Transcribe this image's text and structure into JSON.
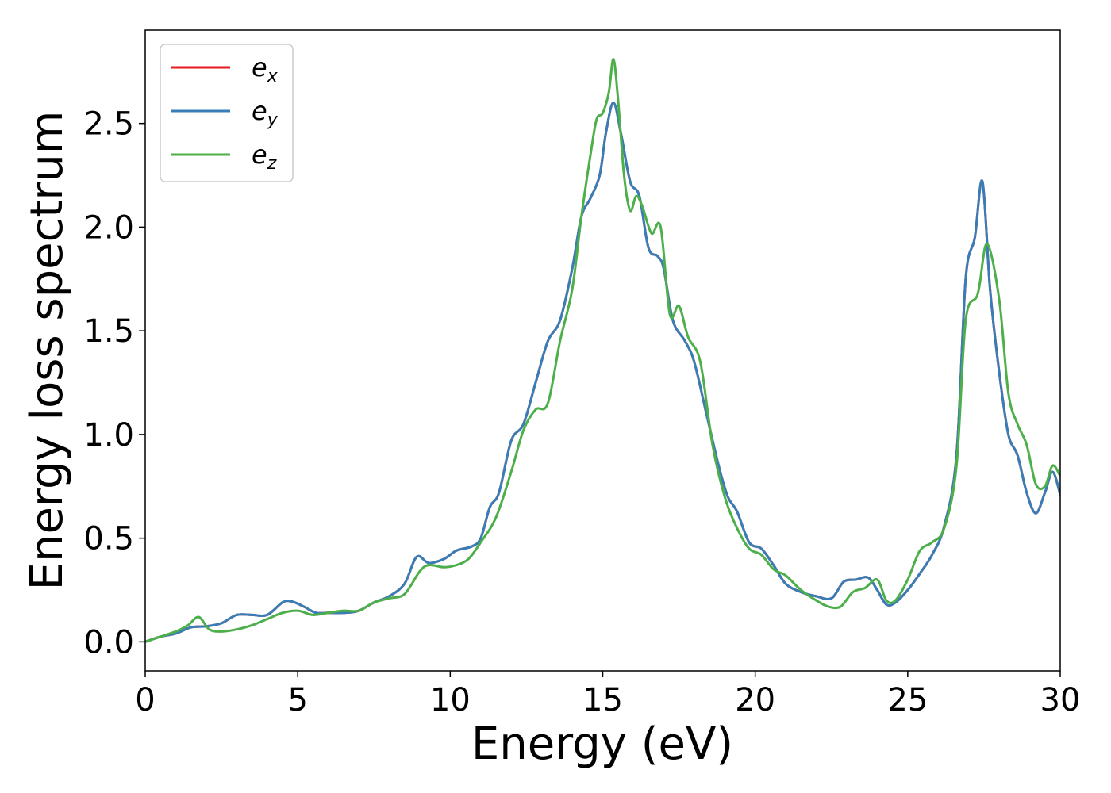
{
  "chart_data": {
    "type": "line",
    "xlabel": "Energy (eV)",
    "ylabel": "Energy loss spectrum",
    "xlim": [
      0,
      30
    ],
    "ylim": [
      -0.14,
      2.95
    ],
    "xticks": [
      0,
      5,
      10,
      15,
      20,
      25,
      30
    ],
    "xtick_labels": [
      "0",
      "5",
      "10",
      "15",
      "20",
      "25",
      "30"
    ],
    "yticks": [
      0.0,
      0.5,
      1.0,
      1.5,
      2.0,
      2.5
    ],
    "ytick_labels": [
      "0.0",
      "0.5",
      "1.0",
      "1.5",
      "2.0",
      "2.5"
    ],
    "grid": false,
    "legend_position": "top-left",
    "series": [
      {
        "name": "e_x",
        "label_main": "e",
        "label_sub": "x",
        "color": "#e41a1c",
        "x": [
          0,
          0.5,
          1,
          1.5,
          2,
          2.5,
          3,
          3.5,
          4,
          4.5,
          4.8,
          5.2,
          5.6,
          6,
          6.5,
          7,
          7.5,
          8,
          8.5,
          8.9,
          9.3,
          9.8,
          10.2,
          10.7,
          11,
          11.3,
          11.6,
          12,
          12.4,
          12.8,
          13.2,
          13.6,
          14,
          14.3,
          14.6,
          14.9,
          15.1,
          15.35,
          15.6,
          15.9,
          16.2,
          16.5,
          16.8,
          17,
          17.3,
          17.7,
          18,
          18.4,
          18.8,
          19.1,
          19.4,
          19.8,
          20.2,
          20.6,
          21,
          21.5,
          22,
          22.5,
          22.9,
          23.3,
          23.7,
          24,
          24.3,
          24.6,
          25,
          25.4,
          25.8,
          26.2,
          26.6,
          26.9,
          27.2,
          27.45,
          27.7,
          28,
          28.3,
          28.6,
          28.9,
          29.2,
          29.5,
          29.75,
          30
        ],
        "values": [
          0,
          0.025,
          0.04,
          0.07,
          0.075,
          0.09,
          0.13,
          0.13,
          0.13,
          0.19,
          0.195,
          0.17,
          0.14,
          0.14,
          0.14,
          0.15,
          0.19,
          0.22,
          0.28,
          0.41,
          0.38,
          0.4,
          0.44,
          0.46,
          0.5,
          0.65,
          0.72,
          0.97,
          1.05,
          1.25,
          1.45,
          1.55,
          1.8,
          2.05,
          2.14,
          2.25,
          2.45,
          2.6,
          2.45,
          2.22,
          2.15,
          1.9,
          1.86,
          1.8,
          1.55,
          1.45,
          1.35,
          1.1,
          0.85,
          0.7,
          0.63,
          0.48,
          0.45,
          0.37,
          0.28,
          0.24,
          0.22,
          0.21,
          0.29,
          0.3,
          0.31,
          0.25,
          0.18,
          0.19,
          0.25,
          0.33,
          0.42,
          0.56,
          0.9,
          1.75,
          1.95,
          2.22,
          1.7,
          1.3,
          1.0,
          0.9,
          0.72,
          0.62,
          0.72,
          0.82,
          0.71
        ]
      },
      {
        "name": "e_y",
        "label_main": "e",
        "label_sub": "y",
        "color": "#377eb8",
        "x": [
          0,
          0.5,
          1,
          1.5,
          2,
          2.5,
          3,
          3.5,
          4,
          4.5,
          4.8,
          5.2,
          5.6,
          6,
          6.5,
          7,
          7.5,
          8,
          8.5,
          8.9,
          9.3,
          9.8,
          10.2,
          10.7,
          11,
          11.3,
          11.6,
          12,
          12.4,
          12.8,
          13.2,
          13.6,
          14,
          14.3,
          14.6,
          14.9,
          15.1,
          15.35,
          15.6,
          15.9,
          16.2,
          16.5,
          16.8,
          17,
          17.3,
          17.7,
          18,
          18.4,
          18.8,
          19.1,
          19.4,
          19.8,
          20.2,
          20.6,
          21,
          21.5,
          22,
          22.5,
          22.9,
          23.3,
          23.7,
          24,
          24.3,
          24.6,
          25,
          25.4,
          25.8,
          26.2,
          26.6,
          26.9,
          27.2,
          27.45,
          27.7,
          28,
          28.3,
          28.6,
          28.9,
          29.2,
          29.5,
          29.75,
          30
        ],
        "values": [
          0,
          0.025,
          0.04,
          0.07,
          0.075,
          0.09,
          0.13,
          0.13,
          0.13,
          0.19,
          0.195,
          0.17,
          0.14,
          0.14,
          0.14,
          0.15,
          0.19,
          0.22,
          0.28,
          0.41,
          0.38,
          0.4,
          0.44,
          0.46,
          0.5,
          0.65,
          0.72,
          0.97,
          1.05,
          1.25,
          1.45,
          1.55,
          1.8,
          2.05,
          2.14,
          2.25,
          2.45,
          2.6,
          2.45,
          2.22,
          2.15,
          1.9,
          1.86,
          1.8,
          1.55,
          1.45,
          1.35,
          1.1,
          0.85,
          0.7,
          0.63,
          0.48,
          0.45,
          0.37,
          0.28,
          0.24,
          0.22,
          0.21,
          0.29,
          0.3,
          0.31,
          0.25,
          0.18,
          0.19,
          0.25,
          0.33,
          0.42,
          0.56,
          0.9,
          1.75,
          1.95,
          2.22,
          1.7,
          1.3,
          1.0,
          0.9,
          0.72,
          0.62,
          0.72,
          0.82,
          0.71
        ]
      },
      {
        "name": "e_z",
        "label_main": "e",
        "label_sub": "z",
        "color": "#4daf4a",
        "x": [
          0,
          0.5,
          1,
          1.4,
          1.75,
          2.1,
          2.5,
          3,
          3.5,
          4,
          4.5,
          5,
          5.5,
          6,
          6.5,
          7,
          7.5,
          8,
          8.5,
          9,
          9.3,
          9.8,
          10.2,
          10.6,
          11,
          11.5,
          12,
          12.4,
          12.8,
          13.2,
          13.6,
          14,
          14.3,
          14.6,
          14.8,
          15,
          15.2,
          15.35,
          15.5,
          15.7,
          15.9,
          16.1,
          16.3,
          16.6,
          16.9,
          17.2,
          17.5,
          17.8,
          18.2,
          18.6,
          19,
          19.4,
          19.8,
          20.2,
          20.6,
          21,
          21.5,
          22,
          22.4,
          22.8,
          23.2,
          23.6,
          24,
          24.3,
          24.6,
          25,
          25.4,
          25.8,
          26.2,
          26.6,
          26.9,
          27.3,
          27.6,
          28,
          28.3,
          28.6,
          28.9,
          29.2,
          29.5,
          29.75,
          30
        ],
        "values": [
          0,
          0.025,
          0.05,
          0.08,
          0.12,
          0.06,
          0.05,
          0.06,
          0.08,
          0.11,
          0.14,
          0.15,
          0.13,
          0.14,
          0.15,
          0.15,
          0.19,
          0.21,
          0.23,
          0.34,
          0.37,
          0.36,
          0.37,
          0.4,
          0.48,
          0.6,
          0.82,
          1.02,
          1.12,
          1.15,
          1.45,
          1.7,
          2.05,
          2.35,
          2.52,
          2.55,
          2.65,
          2.81,
          2.62,
          2.25,
          2.08,
          2.15,
          2.1,
          1.97,
          2.0,
          1.58,
          1.62,
          1.47,
          1.35,
          0.95,
          0.7,
          0.55,
          0.45,
          0.42,
          0.35,
          0.32,
          0.25,
          0.2,
          0.17,
          0.17,
          0.24,
          0.26,
          0.3,
          0.2,
          0.2,
          0.3,
          0.44,
          0.48,
          0.55,
          0.85,
          1.55,
          1.68,
          1.92,
          1.65,
          1.2,
          1.05,
          0.95,
          0.76,
          0.75,
          0.85,
          0.8
        ]
      }
    ]
  }
}
